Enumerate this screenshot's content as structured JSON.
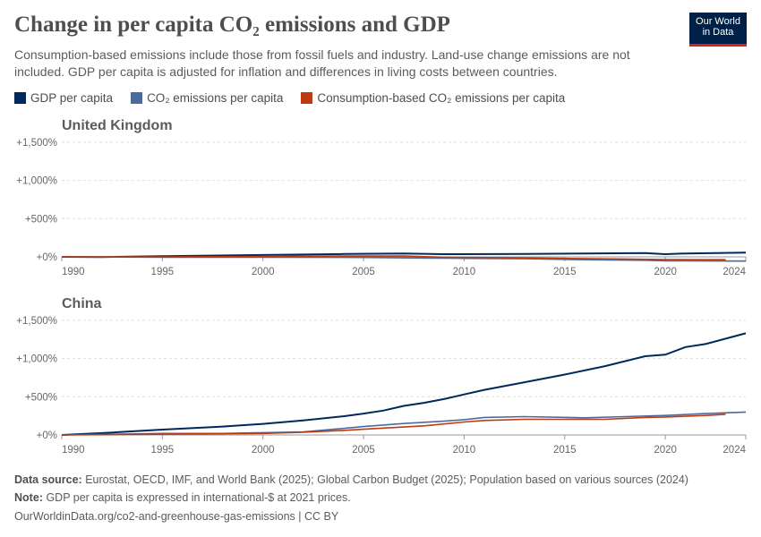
{
  "title": "Change in per capita CO₂ emissions and GDP",
  "subtitle": "Consumption-based emissions include those from fossil fuels and industry. Land-use change emissions are not included. GDP per capita is adjusted for inflation and differences in living costs between countries.",
  "logo": "Our World in Data",
  "footer": {
    "source_label": "Data source:",
    "source": "Eurostat, OECD, IMF, and World Bank (2025); Global Carbon Budget (2025); Population based on various sources (2024)",
    "note_label": "Note:",
    "note": "GDP per capita is expressed in international-$ at 2021 prices.",
    "url": "OurWorldinData.org/co2-and-greenhouse-gas-emissions | CC BY"
  },
  "chart_data": {
    "type": "line",
    "legend": [
      {
        "name": "GDP per capita",
        "color": "#00295b"
      },
      {
        "name": "CO₂ emissions per capita",
        "color": "#4c6a9c"
      },
      {
        "name": "Consumption-based CO₂ emissions per capita",
        "color": "#be3a10"
      }
    ],
    "legend_placement": "top-left",
    "panels": [
      {
        "title": "United Kingdom",
        "xlim": [
          1990,
          2024
        ],
        "ylim": [
          0,
          1500
        ],
        "yticks": [
          "+0%",
          "+500%",
          "+1,000%",
          "+1,500%"
        ],
        "xticks": [
          "1990",
          "1995",
          "2000",
          "2005",
          "2010",
          "2015",
          "2020",
          "2024"
        ],
        "series": [
          {
            "name": "GDP per capita",
            "x": [
              1990,
              1992,
              1995,
              2000,
              2004,
              2007,
              2009,
              2013,
              2016,
              2019,
              2020,
              2021,
              2024
            ],
            "y": [
              0,
              -2,
              8,
              25,
              38,
              45,
              35,
              38,
              45,
              50,
              35,
              45,
              55
            ]
          },
          {
            "name": "CO₂ emissions per capita",
            "x": [
              1990,
              1995,
              2000,
              2005,
              2008,
              2010,
              2013,
              2016,
              2019,
              2020,
              2024
            ],
            "y": [
              0,
              -5,
              -5,
              -8,
              -15,
              -20,
              -25,
              -38,
              -45,
              -52,
              -55
            ]
          },
          {
            "name": "Consumption-based CO₂ emissions per capita",
            "x": [
              1990,
              1995,
              2000,
              2004,
              2007,
              2009,
              2012,
              2015,
              2018,
              2020,
              2023
            ],
            "y": [
              0,
              0,
              5,
              10,
              10,
              -5,
              -10,
              -20,
              -28,
              -35,
              -38
            ]
          }
        ]
      },
      {
        "title": "China",
        "xlim": [
          1990,
          2024
        ],
        "ylim": [
          0,
          1500
        ],
        "yticks": [
          "+0%",
          "+500%",
          "+1,000%",
          "+1,500%"
        ],
        "xticks": [
          "1990",
          "1995",
          "2000",
          "2005",
          "2010",
          "2015",
          "2020",
          "2024"
        ],
        "series": [
          {
            "name": "GDP per capita",
            "x": [
              1990,
              1992,
              1995,
              1998,
              2000,
              2002,
              2004,
              2005,
              2006,
              2007,
              2008,
              2009,
              2010,
              2011,
              2013,
              2015,
              2017,
              2019,
              2020,
              2021,
              2022,
              2023,
              2024
            ],
            "y": [
              0,
              25,
              70,
              110,
              145,
              190,
              245,
              280,
              320,
              380,
              420,
              470,
              530,
              590,
              690,
              790,
              900,
              1030,
              1050,
              1150,
              1190,
              1260,
              1330
            ]
          },
          {
            "name": "CO₂ emissions per capita",
            "x": [
              1990,
              1995,
              1998,
              2000,
              2002,
              2004,
              2005,
              2007,
              2009,
              2010,
              2011,
              2013,
              2016,
              2018,
              2020,
              2022,
              2024
            ],
            "y": [
              0,
              20,
              20,
              30,
              40,
              85,
              110,
              150,
              180,
              200,
              230,
              240,
              225,
              240,
              255,
              280,
              300
            ]
          },
          {
            "name": "Consumption-based CO₂ emissions per capita",
            "x": [
              1990,
              1995,
              2000,
              2002,
              2004,
              2005,
              2008,
              2010,
              2011,
              2013,
              2015,
              2017,
              2019,
              2020,
              2022,
              2023
            ],
            "y": [
              0,
              10,
              20,
              35,
              60,
              75,
              120,
              170,
              190,
              205,
              205,
              205,
              230,
              235,
              255,
              270
            ]
          }
        ]
      }
    ]
  }
}
